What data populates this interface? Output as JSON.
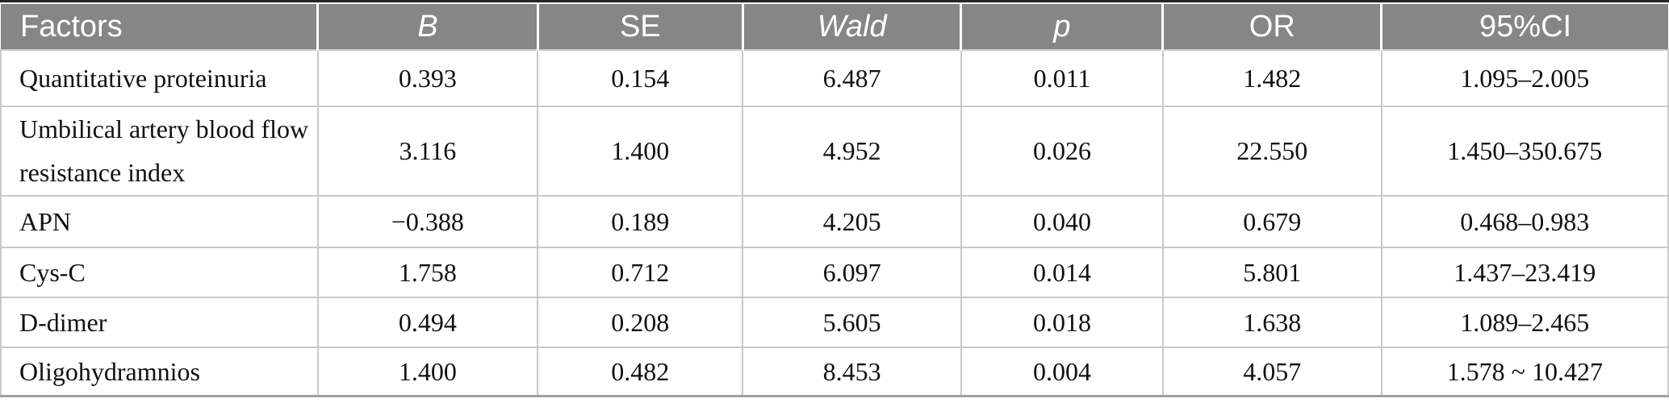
{
  "colors": {
    "header_background": "#868686",
    "header_text": "#ffffff",
    "grid_line": "#c9c9c9",
    "top_rule": "#262626",
    "bottom_rule": "#a0a0a0",
    "body_text": "#111111"
  },
  "table": {
    "columns": [
      {
        "label": "Factors",
        "italic": false
      },
      {
        "label": "B",
        "italic": true
      },
      {
        "label": "SE",
        "italic": false
      },
      {
        "label": "Wald",
        "italic": true
      },
      {
        "label": "p",
        "italic": true
      },
      {
        "label": "OR",
        "italic": false
      },
      {
        "label": "95%CI",
        "italic": false
      }
    ],
    "rows": [
      {
        "cells": [
          "Quantitative proteinuria",
          "0.393",
          "0.154",
          "6.487",
          "0.011",
          "1.482",
          "1.095–2.005"
        ]
      },
      {
        "cells": [
          "Umbilical artery blood flow resistance index",
          "3.116",
          "1.400",
          "4.952",
          "0.026",
          "22.550",
          "1.450–350.675"
        ]
      },
      {
        "cells": [
          "APN",
          "−0.388",
          "0.189",
          "4.205",
          "0.040",
          "0.679",
          "0.468–0.983"
        ]
      },
      {
        "cells": [
          "Cys-C",
          "1.758",
          "0.712",
          "6.097",
          "0.014",
          "5.801",
          "1.437–23.419"
        ]
      },
      {
        "cells": [
          "D-dimer",
          "0.494",
          "0.208",
          "5.605",
          "0.018",
          "1.638",
          "1.089–2.465"
        ]
      },
      {
        "cells": [
          "Oligohydramnios",
          "1.400",
          "0.482",
          "8.453",
          "0.004",
          "4.057",
          "1.578 ~ 10.427"
        ]
      }
    ]
  }
}
